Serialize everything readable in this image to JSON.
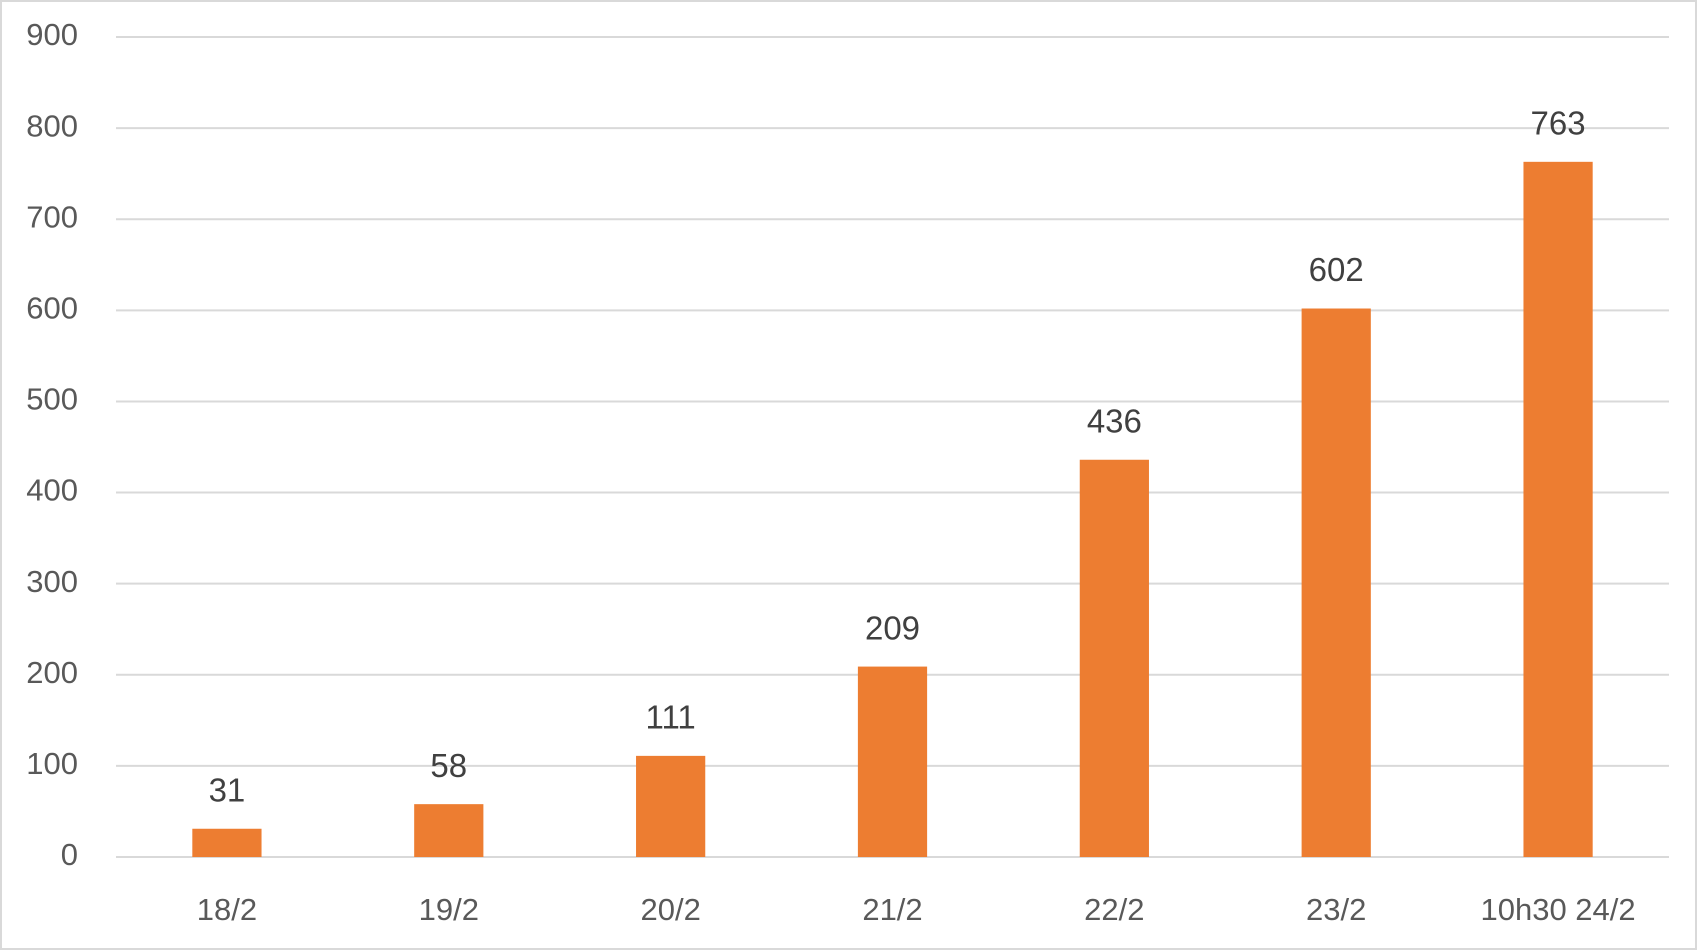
{
  "chart_data": {
    "type": "bar",
    "categories": [
      "18/2",
      "19/2",
      "20/2",
      "21/2",
      "22/2",
      "23/2",
      "10h30 24/2"
    ],
    "values": [
      31,
      58,
      111,
      209,
      436,
      602,
      763
    ],
    "color": "#ed7d31",
    "ylim": [
      0,
      900
    ],
    "yticks": [
      0,
      100,
      200,
      300,
      400,
      500,
      600,
      700,
      800,
      900
    ],
    "grid": true
  }
}
